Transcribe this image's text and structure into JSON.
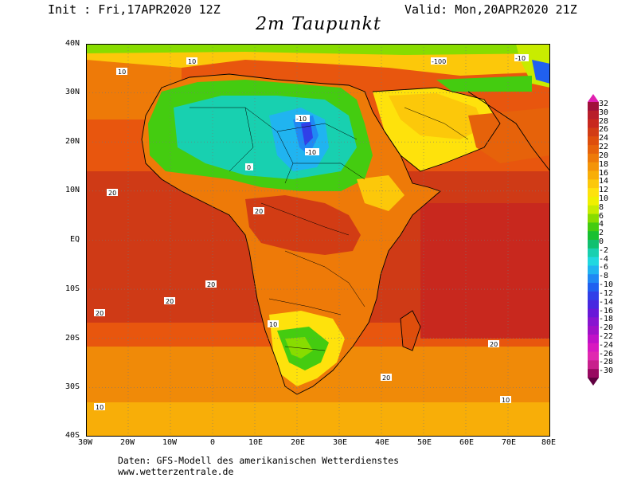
{
  "header": {
    "init": "Init : Fri,17APR2020 12Z",
    "valid": "Valid: Mon,20APR2020 21Z",
    "title": "2m Taupunkt"
  },
  "map": {
    "lat_ticks": [
      "40N",
      "30N",
      "20N",
      "10N",
      "EQ",
      "10S",
      "20S",
      "30S",
      "40S"
    ],
    "lon_ticks": [
      "30W",
      "20W",
      "10W",
      "0",
      "10E",
      "20E",
      "30E",
      "40E",
      "50E",
      "60E",
      "70E",
      "80E"
    ],
    "contour_labels": [
      "10",
      "20",
      "0",
      "-10",
      "-100"
    ]
  },
  "colorbar": {
    "labels": [
      "32",
      "30",
      "28",
      "26",
      "24",
      "22",
      "20",
      "18",
      "16",
      "14",
      "12",
      "10",
      "8",
      "6",
      "4",
      "2",
      "0",
      "-2",
      "-4",
      "-6",
      "-8",
      "-10",
      "-12",
      "-14",
      "-16",
      "-18",
      "-20",
      "-22",
      "-24",
      "-26",
      "-28",
      "-30"
    ],
    "colors": [
      "#a0103a",
      "#b81e2a",
      "#c8281e",
      "#d23c14",
      "#de4e0c",
      "#e6620a",
      "#ee7a08",
      "#f49408",
      "#f8ae08",
      "#fcc80a",
      "#fee20c",
      "#f0f000",
      "#c8ec00",
      "#88dc00",
      "#44cc10",
      "#18c030",
      "#10c070",
      "#18d0b0",
      "#20d8e0",
      "#20b4f0",
      "#2088f4",
      "#2060f0",
      "#3040e8",
      "#4828e0",
      "#6818d8",
      "#8814d0",
      "#a010c8",
      "#c010c8",
      "#d818c0",
      "#e028b0",
      "#c8208c",
      "#980860"
    ]
  },
  "footer": {
    "line1": "Daten: GFS-Modell des amerikanischen Wetterdienstes",
    "line2": "www.wetterzentrale.de"
  }
}
